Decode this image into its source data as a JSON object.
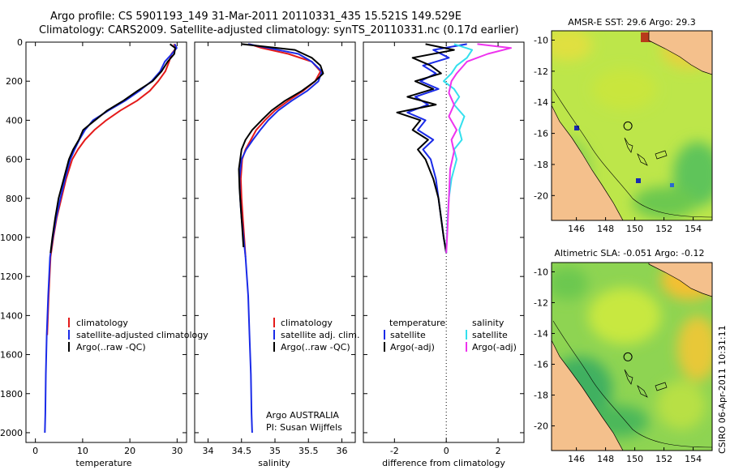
{
  "chart_data": {
    "type": "line",
    "title": {
      "line1": "Argo profile: CS 5901193_149 31-Mar-2011 20110331_435 15.521S 149.529E",
      "line2": "Climatology: CARS2009. Satellite-adjusted climatology: synTS_20110331.nc (0.17d earlier)"
    },
    "colors": {
      "climatology": "#e41a1a",
      "satellite": "#1a2be8",
      "argo": "#000000",
      "sal_satellite": "#33e0ee",
      "sal_argo": "#ee33ee",
      "grid": "#000000"
    },
    "depth_axis": {
      "range": [
        0,
        2050
      ],
      "ticks": [
        "0",
        "200",
        "400",
        "600",
        "800",
        "1000",
        "1200",
        "1400",
        "1600",
        "1800",
        "2000"
      ]
    },
    "temperature_panel": {
      "xlabel": "temperature",
      "xlim": [
        -2,
        32
      ],
      "xticks": [
        "0",
        "10",
        "20",
        "30"
      ],
      "legend": [
        "climatology",
        "satellite-adjusted climatology",
        "Argo(..raw -QC)"
      ],
      "series": [
        {
          "name": "climatology",
          "x": [
            29.3,
            29.8,
            28.8,
            28.3,
            27.5,
            26,
            24.2,
            21.5,
            18,
            15,
            12.5,
            10.5,
            9.0,
            7.8,
            6.5,
            5.5,
            4.5,
            3.8,
            3.2,
            2.8,
            2.5
          ],
          "depth": [
            10,
            30,
            60,
            100,
            150,
            200,
            250,
            300,
            350,
            400,
            450,
            500,
            550,
            600,
            700,
            800,
            900,
            1000,
            1100,
            1300,
            1500
          ]
        },
        {
          "name": "satellite",
          "x": [
            29.5,
            29.9,
            28.9,
            27.4,
            26.4,
            24.6,
            22.0,
            19.0,
            15.5,
            12.2,
            10.5,
            9.3,
            8.3,
            7.4,
            6.3,
            5.3,
            4.4,
            3.7,
            3.1,
            2.7,
            2.4,
            2.2,
            2.1,
            2.0
          ],
          "depth": [
            10,
            30,
            60,
            100,
            150,
            200,
            250,
            300,
            350,
            400,
            450,
            500,
            550,
            600,
            700,
            800,
            900,
            1000,
            1100,
            1300,
            1500,
            1700,
            1900,
            2000
          ]
        },
        {
          "name": "argo",
          "x": [
            28.5,
            29.6,
            29.4,
            28.0,
            26.7,
            24.8,
            21.6,
            18.6,
            15.2,
            11.6,
            10.1,
            9.2,
            8.0,
            7.1,
            6.0,
            4.9,
            4.2,
            3.6,
            3.2
          ],
          "depth": [
            10,
            30,
            60,
            100,
            150,
            200,
            250,
            300,
            350,
            420,
            450,
            500,
            550,
            600,
            700,
            800,
            900,
            1000,
            1080
          ]
        }
      ]
    },
    "salinity_panel": {
      "xlabel": "salinity",
      "xlim": [
        33.8,
        36.2
      ],
      "xticks": [
        "34",
        "34.5",
        "35",
        "35.5",
        "36"
      ],
      "legend": [
        "climatology",
        "satellite adj. clim.",
        "Argo(..raw -QC)"
      ],
      "annotation": [
        "Argo AUSTRALIA",
        "PI: Susan Wijffels"
      ],
      "series": [
        {
          "name": "climatology",
          "x": [
            34.62,
            34.8,
            35.2,
            35.55,
            35.68,
            35.6,
            35.42,
            35.2,
            35.0,
            34.85,
            34.72,
            34.64,
            34.56,
            34.51,
            34.49,
            34.5,
            34.52,
            34.54,
            34.56
          ],
          "depth": [
            10,
            30,
            60,
            100,
            150,
            200,
            250,
            300,
            350,
            400,
            450,
            500,
            550,
            600,
            700,
            800,
            900,
            1000,
            1100
          ]
        },
        {
          "name": "satellite",
          "x": [
            34.6,
            34.9,
            35.35,
            35.55,
            35.7,
            35.65,
            35.48,
            35.25,
            35.05,
            34.9,
            34.78,
            34.67,
            34.57,
            34.5,
            34.47,
            34.48,
            34.5,
            34.53,
            34.56,
            34.6,
            34.62,
            34.64,
            34.65,
            34.66
          ],
          "depth": [
            10,
            30,
            60,
            100,
            150,
            200,
            250,
            300,
            350,
            400,
            450,
            500,
            550,
            600,
            700,
            800,
            900,
            1000,
            1100,
            1300,
            1500,
            1700,
            1900,
            2000
          ]
        },
        {
          "name": "argo",
          "x": [
            34.5,
            35.3,
            35.55,
            35.68,
            35.72,
            35.6,
            35.4,
            35.15,
            34.95,
            34.8,
            34.66,
            34.56,
            34.5,
            34.46,
            34.47,
            34.49,
            34.51,
            34.53
          ],
          "depth": [
            10,
            40,
            80,
            120,
            160,
            200,
            250,
            300,
            350,
            400,
            450,
            500,
            550,
            650,
            750,
            850,
            950,
            1050
          ]
        }
      ]
    },
    "difference_panel": {
      "xlabel": "difference from climatology",
      "xlim": [
        -3.2,
        3.0
      ],
      "xticks": [
        "-2",
        "0",
        "2"
      ],
      "legend": {
        "temperature": "temperature",
        "salinity": "salinity",
        "t_sat": "satellite",
        "t_argo": "Argo(-adj)",
        "s_sat": "satellite",
        "s_argo": "Argo(-adj)"
      },
      "series": [
        {
          "name": "temp_satellite",
          "x": [
            0.8,
            -0.5,
            0.1,
            -0.9,
            -0.4,
            -1.0,
            -0.3,
            -1.2,
            -0.7,
            -1.5,
            -0.8,
            -1.1,
            -0.5,
            -0.9,
            -0.6,
            -0.4,
            -0.3,
            -0.2,
            -0.1,
            0.0
          ],
          "depth": [
            10,
            40,
            80,
            120,
            160,
            200,
            240,
            280,
            320,
            360,
            400,
            450,
            500,
            550,
            600,
            700,
            800,
            900,
            1000,
            1080
          ]
        },
        {
          "name": "temp_argo",
          "x": [
            -0.8,
            0.3,
            -1.3,
            -0.6,
            -0.2,
            -1.2,
            -0.5,
            -1.5,
            -0.4,
            -1.9,
            -1.0,
            -1.3,
            -0.7,
            -1.1,
            -0.8,
            -0.5,
            -0.3,
            -0.2,
            -0.1,
            0.0
          ],
          "depth": [
            10,
            40,
            80,
            120,
            160,
            200,
            240,
            280,
            320,
            360,
            400,
            450,
            500,
            550,
            600,
            700,
            800,
            900,
            1000,
            1080
          ]
        },
        {
          "name": "sal_satellite",
          "x": [
            0.3,
            1.0,
            0.8,
            0.4,
            0.2,
            -0.1,
            0.3,
            0.5,
            0.3,
            0.7,
            0.5,
            0.6,
            0.3,
            0.4,
            0.2,
            0.1,
            0.05,
            0.0
          ],
          "depth": [
            10,
            40,
            80,
            120,
            160,
            200,
            240,
            280,
            320,
            380,
            450,
            500,
            550,
            600,
            700,
            800,
            900,
            1080
          ]
        },
        {
          "name": "sal_argo",
          "x": [
            1.2,
            2.5,
            1.6,
            0.8,
            0.4,
            0.2,
            0.1,
            0.3,
            0.1,
            0.4,
            0.2,
            0.3,
            0.15,
            0.1,
            0.05,
            0.0
          ],
          "depth": [
            10,
            30,
            60,
            100,
            160,
            200,
            260,
            320,
            380,
            450,
            500,
            560,
            650,
            800,
            950,
            1080
          ]
        }
      ]
    },
    "map_sst": {
      "title": "AMSR-E SST: 29.6  Argo: 29.3",
      "xticks": [
        "146",
        "148",
        "150",
        "152",
        "154"
      ],
      "yticks": [
        "-10",
        "-12",
        "-14",
        "-16",
        "-18",
        "-20"
      ],
      "xlim": [
        144.3,
        155.3
      ],
      "ylim": [
        -21.6,
        -9.4
      ],
      "float": {
        "lon": 149.529,
        "lat": -15.521
      }
    },
    "map_sla": {
      "title": "Altimetric SLA: -0.051  Argo: -0.12",
      "xticks": [
        "146",
        "148",
        "150",
        "152",
        "154"
      ],
      "yticks": [
        "-10",
        "-12",
        "-14",
        "-16",
        "-18",
        "-20"
      ],
      "xlim": [
        144.3,
        155.3
      ],
      "ylim": [
        -21.6,
        -9.4
      ],
      "float": {
        "lon": 149.529,
        "lat": -15.521
      }
    },
    "stamp": "CSIRO 06-Apr-2011 10:31:11"
  }
}
